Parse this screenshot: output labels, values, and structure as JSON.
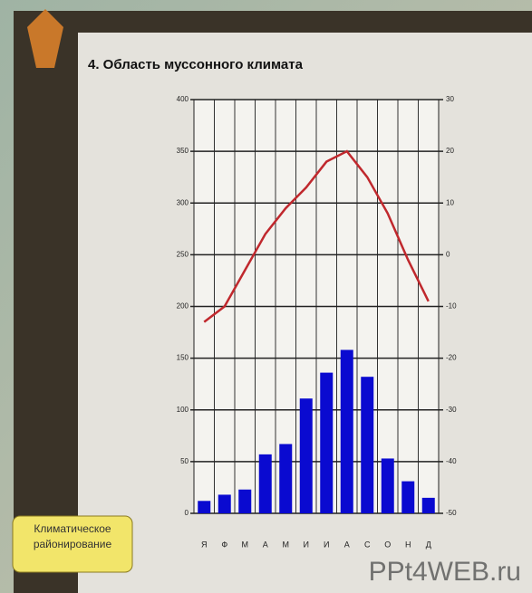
{
  "chart_data": {
    "type": "bar",
    "title": "4. Область муссонного климата",
    "categories": [
      "Я",
      "Ф",
      "М",
      "А",
      "М",
      "И",
      "И",
      "А",
      "С",
      "О",
      "Н",
      "Д"
    ],
    "series": [
      {
        "type": "bar",
        "color": "#0a0ad0",
        "values": [
          12,
          18,
          23,
          57,
          67,
          111,
          136,
          158,
          132,
          53,
          31,
          15
        ]
      },
      {
        "type": "line",
        "axis": "y2",
        "color": "#c0282d",
        "values": [
          -13,
          -10,
          -3,
          4,
          9,
          13,
          18,
          20,
          15,
          8,
          -1,
          -9
        ]
      }
    ],
    "ylim": [
      0,
      400
    ],
    "yticks": [
      0,
      50,
      100,
      150,
      200,
      250,
      300,
      350,
      400
    ],
    "y2lim": [
      -50,
      30
    ],
    "y2ticks": [
      -50,
      -40,
      -30,
      -20,
      -10,
      0,
      10,
      20,
      30
    ],
    "grid": true
  },
  "button": "Климатическое районирование",
  "watermark": "PPt4WEB.ru"
}
